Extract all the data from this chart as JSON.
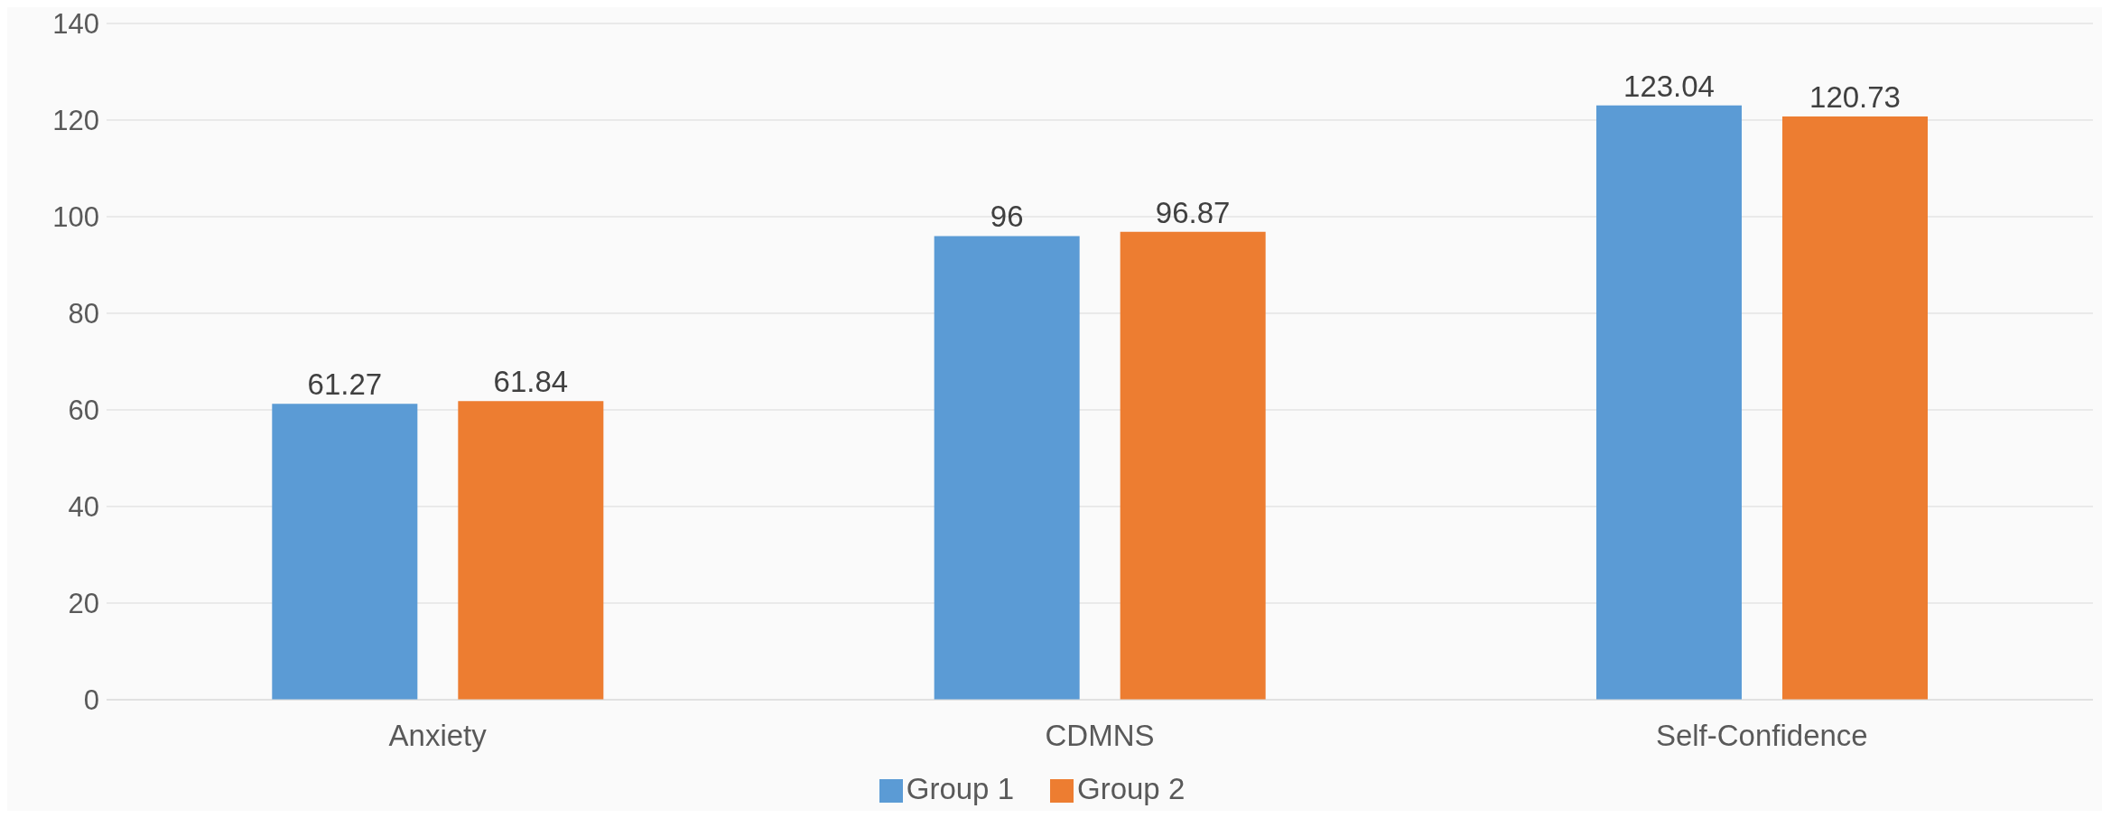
{
  "chart_data": {
    "type": "bar",
    "categories": [
      "Anxiety",
      "CDMNS",
      "Self-Confidence"
    ],
    "series": [
      {
        "name": "Group 1",
        "color": "#5b9bd5",
        "values": [
          61.27,
          96,
          123.04
        ]
      },
      {
        "name": "Group 2",
        "color": "#ed7d31",
        "values": [
          61.84,
          96.87,
          120.73
        ]
      }
    ],
    "ylim": [
      0,
      140
    ],
    "yticks": [
      0,
      20,
      40,
      60,
      80,
      100,
      120,
      140
    ],
    "grid": "y",
    "legend": "bottom",
    "data_labels": true
  }
}
